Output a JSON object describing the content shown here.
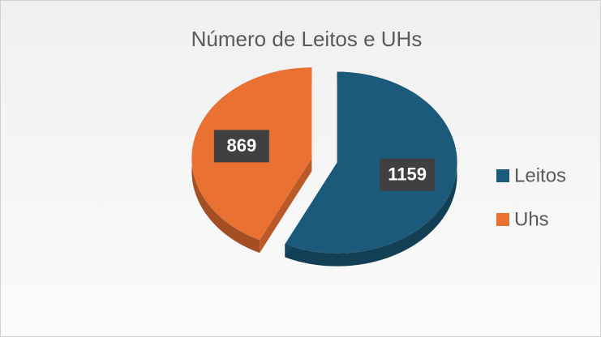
{
  "chart_data": {
    "type": "pie",
    "title": "Número de Leitos e UHs",
    "categories": [
      "Leitos",
      "Uhs"
    ],
    "values": [
      1159,
      869
    ],
    "colors": [
      "#1b5a7a",
      "#e97132"
    ],
    "legend": "right"
  }
}
